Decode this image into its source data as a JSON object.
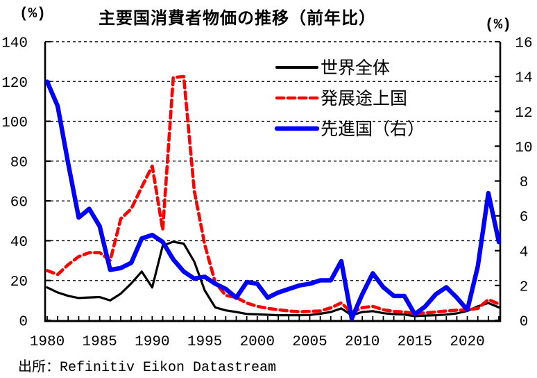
{
  "title": "主要国消費者物価の推移（前年比）",
  "source": "出所：Refinitiv Eikon Datastream",
  "colors": {
    "world": "#000000",
    "developing": "#ff0000",
    "advanced": "#0000ff",
    "axis": "#000000"
  },
  "chart_data": {
    "type": "line",
    "x": [
      1980,
      1981,
      1982,
      1983,
      1984,
      1985,
      1986,
      1987,
      1988,
      1989,
      1990,
      1991,
      1992,
      1993,
      1994,
      1995,
      1996,
      1997,
      1998,
      1999,
      2000,
      2001,
      2002,
      2003,
      2004,
      2005,
      2006,
      2007,
      2008,
      2009,
      2010,
      2011,
      2012,
      2013,
      2014,
      2015,
      2016,
      2017,
      2018,
      2019,
      2020,
      2021,
      2022,
      2023
    ],
    "series": [
      {
        "name": "世界全体",
        "axis": "left",
        "color": "#000000",
        "style": "solid",
        "width": 3.2,
        "values": [
          16.5,
          14,
          12.3,
          11.2,
          11.5,
          11.7,
          10,
          13.4,
          18.5,
          24.5,
          16.5,
          37.5,
          39.5,
          38.5,
          29.5,
          15,
          6.5,
          5,
          4.2,
          3.2,
          3,
          2.8,
          2.6,
          2.6,
          2.6,
          2.7,
          3.3,
          4.2,
          6,
          2.5,
          4.2,
          4.6,
          3.6,
          3.1,
          2.9,
          2.1,
          2.4,
          2.6,
          2.9,
          3.5,
          4.7,
          7,
          8.7,
          6.5
        ]
      },
      {
        "name": "発展途上国",
        "axis": "left",
        "color": "#ff0000",
        "style": "dashed",
        "width": 4.6,
        "values": [
          25,
          23,
          28,
          32,
          34,
          34,
          30,
          51,
          56,
          67,
          77.5,
          45.5,
          122,
          122.5,
          65,
          38,
          19,
          12.5,
          11.5,
          8.7,
          7,
          6,
          5.3,
          4.7,
          4.3,
          4.5,
          4.7,
          6.3,
          8.8,
          3.7,
          6.4,
          7,
          5.3,
          4.5,
          4.2,
          3.5,
          3.7,
          4.2,
          4.7,
          5.1,
          5.3,
          6,
          10.4,
          8.2
        ]
      },
      {
        "name": "先進国（右）",
        "axis": "right",
        "color": "#0000ff",
        "style": "solid",
        "width": 6.4,
        "values": [
          13.7,
          12.3,
          9,
          5.9,
          6.4,
          5.4,
          2.9,
          3,
          3.3,
          4.7,
          4.9,
          4.5,
          3.5,
          2.8,
          2.4,
          2.5,
          2.1,
          1.8,
          1.3,
          2.2,
          2.1,
          1.3,
          1.6,
          1.8,
          2,
          2.1,
          2.3,
          2.3,
          3.4,
          0.1,
          1.5,
          2.7,
          1.9,
          1.4,
          1.4,
          0.35,
          0.8,
          1.5,
          1.9,
          1.3,
          0.6,
          3.1,
          7.3,
          4.5
        ]
      }
    ],
    "left_axis": {
      "label": "(%)",
      "min": 0,
      "max": 140,
      "tick_step": 20
    },
    "right_axis": {
      "label": "(%)",
      "min": 0,
      "max": 16,
      "tick_step": 2
    },
    "x_tick_labels": [
      1980,
      1985,
      1990,
      1995,
      2000,
      2005,
      2010,
      2015,
      2020
    ],
    "grid": "horizontal-dashed",
    "legend_position": "upper-right-inside"
  }
}
